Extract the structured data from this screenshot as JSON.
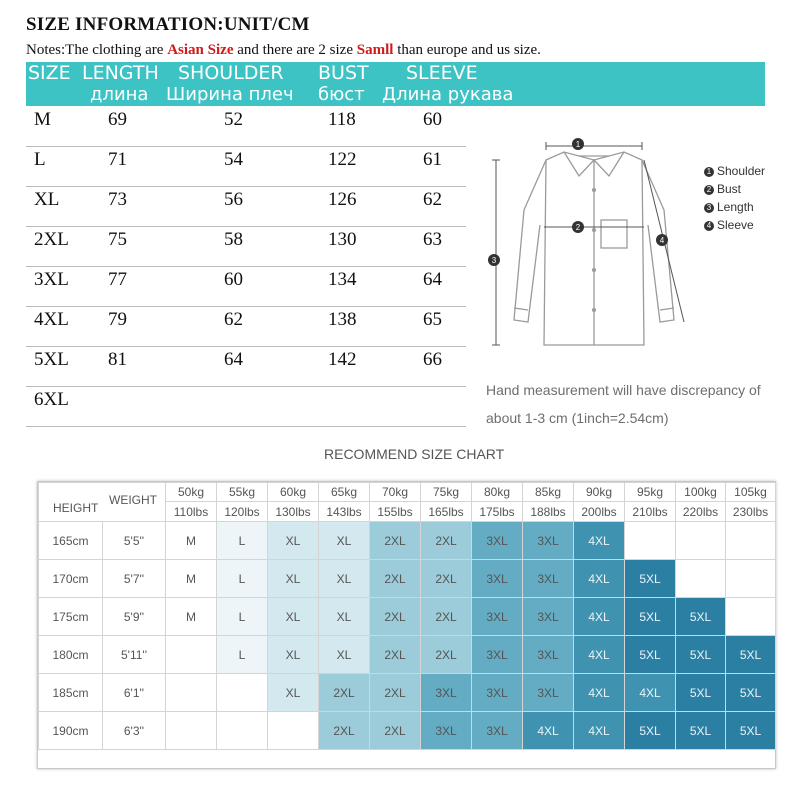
{
  "header": {
    "title": "SIZE INFORMATION:UNIT/CM",
    "notes_prefix": "Notes:The clothing are ",
    "notes_red1": "Asian Size",
    "notes_mid": " and there are 2 size ",
    "notes_red2": "Samll",
    "notes_suffix": " than europe and us size."
  },
  "banner": {
    "size": "SIZE",
    "length": "LENGTH",
    "length_ru": "длина",
    "shoulder": "SHOULDER",
    "shoulder_ru": "Ширина плеч",
    "bust": "BUST",
    "bust_ru": "бюст",
    "sleeve": "SLEEVE",
    "sleeve_ru": "Длина рукава"
  },
  "size_table": [
    {
      "size": "M",
      "length": "69",
      "shoulder": "52",
      "bust": "118",
      "sleeve": "60"
    },
    {
      "size": "L",
      "length": "71",
      "shoulder": "54",
      "bust": "122",
      "sleeve": "61"
    },
    {
      "size": "XL",
      "length": "73",
      "shoulder": "56",
      "bust": "126",
      "sleeve": "62"
    },
    {
      "size": "2XL",
      "length": "75",
      "shoulder": "58",
      "bust": "130",
      "sleeve": "63"
    },
    {
      "size": "3XL",
      "length": "77",
      "shoulder": "60",
      "bust": "134",
      "sleeve": "64"
    },
    {
      "size": "4XL",
      "length": "79",
      "shoulder": "62",
      "bust": "138",
      "sleeve": "65"
    },
    {
      "size": "5XL",
      "length": "81",
      "shoulder": "64",
      "bust": "142",
      "sleeve": "66"
    },
    {
      "size": "6XL",
      "length": "",
      "shoulder": "",
      "bust": "",
      "sleeve": ""
    }
  ],
  "legend": {
    "n1": "1",
    "item1": "Shoulder",
    "n2": "2",
    "item2": "Bust",
    "n3": "3",
    "item3": "Length",
    "n4": "4",
    "item4": "Sleeve"
  },
  "diagram_numbers": {
    "n1": "1",
    "n2": "2",
    "n3": "3",
    "n4": "4"
  },
  "hand_note": {
    "line1": "Hand measurement will have discrepancy of",
    "line2": "about 1-3 cm  (1inch=2.54cm)"
  },
  "recommend": {
    "title": "RECOMMEND SIZE CHART",
    "weight_label": "WEIGHT",
    "height_label": "HEIGHT",
    "weights_kg": [
      "50kg",
      "55kg",
      "60kg",
      "65kg",
      "70kg",
      "75kg",
      "80kg",
      "85kg",
      "90kg",
      "95kg",
      "100kg",
      "105kg"
    ],
    "weights_lbs": [
      "110lbs",
      "120lbs",
      "130lbs",
      "143lbs",
      "155lbs",
      "165lbs",
      "175lbs",
      "188lbs",
      "200lbs",
      "210lbs",
      "220lbs",
      "230lbs"
    ],
    "rows": [
      {
        "cm": "165cm",
        "ft": "5'5''",
        "sizes": [
          "M",
          "L",
          "XL",
          "XL",
          "2XL",
          "2XL",
          "3XL",
          "3XL",
          "4XL",
          "",
          "",
          ""
        ]
      },
      {
        "cm": "170cm",
        "ft": "5'7''",
        "sizes": [
          "M",
          "L",
          "XL",
          "XL",
          "2XL",
          "2XL",
          "3XL",
          "3XL",
          "4XL",
          "5XL",
          "",
          ""
        ]
      },
      {
        "cm": "175cm",
        "ft": "5'9''",
        "sizes": [
          "M",
          "L",
          "XL",
          "XL",
          "2XL",
          "2XL",
          "3XL",
          "3XL",
          "4XL",
          "5XL",
          "5XL",
          ""
        ]
      },
      {
        "cm": "180cm",
        "ft": "5'11''",
        "sizes": [
          "",
          "L",
          "XL",
          "XL",
          "2XL",
          "2XL",
          "3XL",
          "3XL",
          "4XL",
          "5XL",
          "5XL",
          "5XL"
        ]
      },
      {
        "cm": "185cm",
        "ft": "6'1''",
        "sizes": [
          "",
          "",
          "XL",
          "2XL",
          "2XL",
          "3XL",
          "3XL",
          "3XL",
          "4XL",
          "4XL",
          "5XL",
          "5XL"
        ]
      },
      {
        "cm": "190cm",
        "ft": "6'3''",
        "sizes": [
          "",
          "",
          "",
          "2XL",
          "2XL",
          "3XL",
          "3XL",
          "4XL",
          "4XL",
          "5XL",
          "5XL",
          "5XL"
        ]
      }
    ]
  }
}
